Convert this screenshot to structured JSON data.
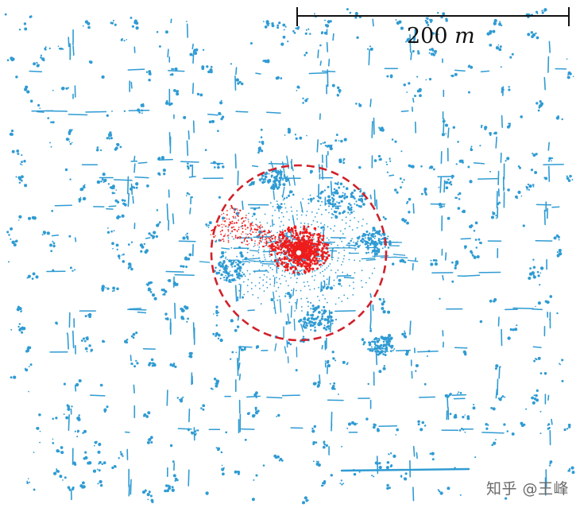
{
  "scale_bar": {
    "value": "200",
    "unit": "m"
  },
  "watermark": {
    "text": "知乎 @王峰"
  },
  "colors": {
    "background": "#ffffff",
    "map_points": "#2f9bd3",
    "scan_points": "#ee1c1c",
    "range_circle": "#d0212b",
    "scale_bar": "#111111"
  }
}
